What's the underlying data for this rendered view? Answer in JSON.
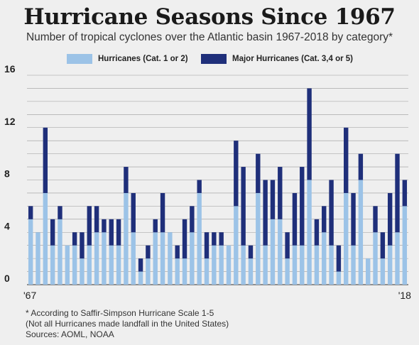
{
  "title": "Hurricane Seasons Since 1967",
  "subtitle": "Number of tropical cyclones over the Atlantic basin 1967-2018 by category*",
  "colors": {
    "hurricanes": "#9cc3e7",
    "major": "#1f2f7a",
    "background": "#efefef",
    "grid": "#9a9a9a"
  },
  "footnotes": [
    "* According to Saffir-Simpson Hurricane Scale 1-5",
    "(Not all Hurricanes made landfall in the United States)",
    "Sources: AOML, NOAA"
  ],
  "chart_data": {
    "type": "bar",
    "stacked": true,
    "legend_position": "top",
    "grid": true,
    "ylim": [
      0,
      16
    ],
    "yticks": [
      "0",
      "4",
      "8",
      "12",
      "16"
    ],
    "x_tick_labels": [
      "'67",
      "'18"
    ],
    "categories": [
      "1967",
      "1968",
      "1969",
      "1970",
      "1971",
      "1972",
      "1973",
      "1974",
      "1975",
      "1976",
      "1977",
      "1978",
      "1979",
      "1980",
      "1981",
      "1982",
      "1983",
      "1984",
      "1985",
      "1986",
      "1987",
      "1988",
      "1989",
      "1990",
      "1991",
      "1992",
      "1993",
      "1994",
      "1995",
      "1996",
      "1997",
      "1998",
      "1999",
      "2000",
      "2001",
      "2002",
      "2003",
      "2004",
      "2005",
      "2006",
      "2007",
      "2008",
      "2009",
      "2010",
      "2011",
      "2012",
      "2013",
      "2014",
      "2015",
      "2016",
      "2017",
      "2018"
    ],
    "series": [
      {
        "name": "Hurricanes (Cat. 1 or 2)",
        "values": [
          5,
          4,
          7,
          3,
          5,
          3,
          3,
          2,
          3,
          4,
          4,
          3,
          3,
          7,
          4,
          1,
          2,
          4,
          4,
          4,
          2,
          2,
          4,
          7,
          2,
          3,
          3,
          3,
          6,
          3,
          2,
          7,
          3,
          5,
          5,
          2,
          3,
          3,
          8,
          3,
          4,
          3,
          1,
          7,
          3,
          8,
          2,
          4,
          2,
          3,
          4,
          6
        ]
      },
      {
        "name": "Major Hurricanes (Cat. 3,4 or 5)",
        "values": [
          1,
          0,
          5,
          2,
          1,
          0,
          1,
          2,
          3,
          2,
          1,
          2,
          2,
          2,
          3,
          1,
          1,
          1,
          3,
          0,
          1,
          3,
          2,
          1,
          2,
          1,
          1,
          0,
          5,
          6,
          1,
          3,
          5,
          3,
          4,
          2,
          4,
          6,
          7,
          2,
          2,
          5,
          2,
          5,
          4,
          2,
          0,
          2,
          2,
          4,
          6,
          2
        ]
      }
    ]
  }
}
